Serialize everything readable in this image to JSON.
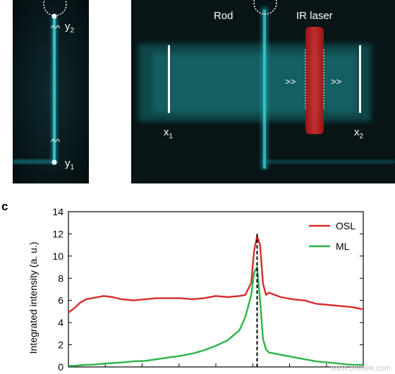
{
  "micrograph": {
    "left_panel": {
      "label_top_main": "y",
      "label_top_sub": "2",
      "label_bottom_main": "y",
      "label_bottom_sub": "1",
      "arrow_top": "^^",
      "arrow_bottom": "^^"
    },
    "right_panel": {
      "label_rod": "Rod",
      "label_laser": "IR laser",
      "label_left_main": "x",
      "label_left_sub": "1",
      "label_right_main": "x",
      "label_right_sub": "2",
      "arrow_left": ">>",
      "arrow_right": ">>"
    }
  },
  "panel_label": "c",
  "chart_data": {
    "type": "line",
    "ylabel": "Integrated intensity (a. u.)",
    "xlabel": "",
    "ylim": [
      0,
      14
    ],
    "xlim": [
      0,
      100
    ],
    "yticks": [
      "0",
      "2",
      "4",
      "6",
      "8",
      "10",
      "12",
      "14"
    ],
    "x": [
      0,
      2,
      4,
      6,
      8,
      10,
      12,
      15,
      18,
      22,
      26,
      30,
      34,
      38,
      42,
      46,
      50,
      54,
      58,
      60,
      62,
      63,
      64,
      65,
      66,
      67,
      68,
      70,
      72,
      76,
      80,
      84,
      88,
      92,
      96,
      100
    ],
    "series": [
      {
        "name": "OSL",
        "color": "#d62c2c",
        "values": [
          4.9,
          5.3,
          5.8,
          6.1,
          6.2,
          6.3,
          6.4,
          6.3,
          6.1,
          6.0,
          6.1,
          6.2,
          6.2,
          6.2,
          6.1,
          6.2,
          6.4,
          6.3,
          6.4,
          6.5,
          7.6,
          10.5,
          11.8,
          11.0,
          7.5,
          6.5,
          6.7,
          6.5,
          6.3,
          6.1,
          6.0,
          5.7,
          5.6,
          5.5,
          5.4,
          5.2
        ]
      },
      {
        "name": "ML",
        "color": "#2db34a",
        "values": [
          0.1,
          0.1,
          0.15,
          0.2,
          0.2,
          0.25,
          0.3,
          0.35,
          0.4,
          0.5,
          0.55,
          0.7,
          0.85,
          1.0,
          1.2,
          1.5,
          1.9,
          2.4,
          3.3,
          4.5,
          6.5,
          8.5,
          9.0,
          6.0,
          2.5,
          1.6,
          1.3,
          1.2,
          1.1,
          0.9,
          0.7,
          0.5,
          0.4,
          0.3,
          0.2,
          0.2
        ]
      }
    ],
    "peak_marker_x": 64,
    "legend": "top-right"
  },
  "watermark_text": "www.ofweek.com"
}
